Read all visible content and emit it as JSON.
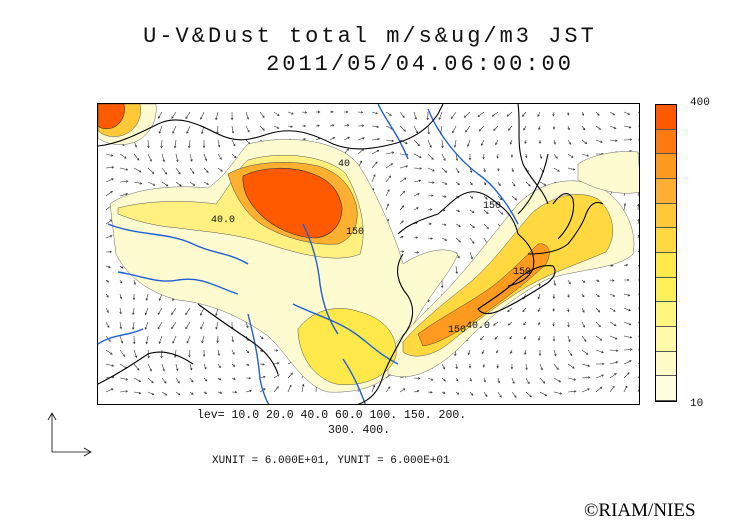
{
  "title": {
    "line1": "U-V&Dust total m/s&ug/m3 JST",
    "line2": "2011/05/04.06:00:00"
  },
  "colorbar": {
    "max_label": "400",
    "min_label": "10",
    "colors": [
      "#ff5a00",
      "#ff7a10",
      "#ff9a20",
      "#ffb030",
      "#ffc838",
      "#ffd93f",
      "#ffe84a",
      "#fff05a",
      "#fff680",
      "#fffaa8",
      "#fffcc8",
      "#fffde0"
    ]
  },
  "levels": {
    "line1": "lev= 10.0 20.0 40.0 60.0 100. 150. 200.",
    "line2": "300. 400."
  },
  "units": "XUNIT = 6.000E+01, YUNIT = 6.000E+01",
  "contour_labels": [
    "40.0",
    "40",
    "150",
    "150",
    "150",
    "150",
    "40.0"
  ],
  "copyright": "©RIAM/NIES",
  "colors": {
    "rivers": "#1f5fd6",
    "coast": "#000000",
    "dust_high": "#ff5a00",
    "dust_low": "#fffcc8"
  }
}
